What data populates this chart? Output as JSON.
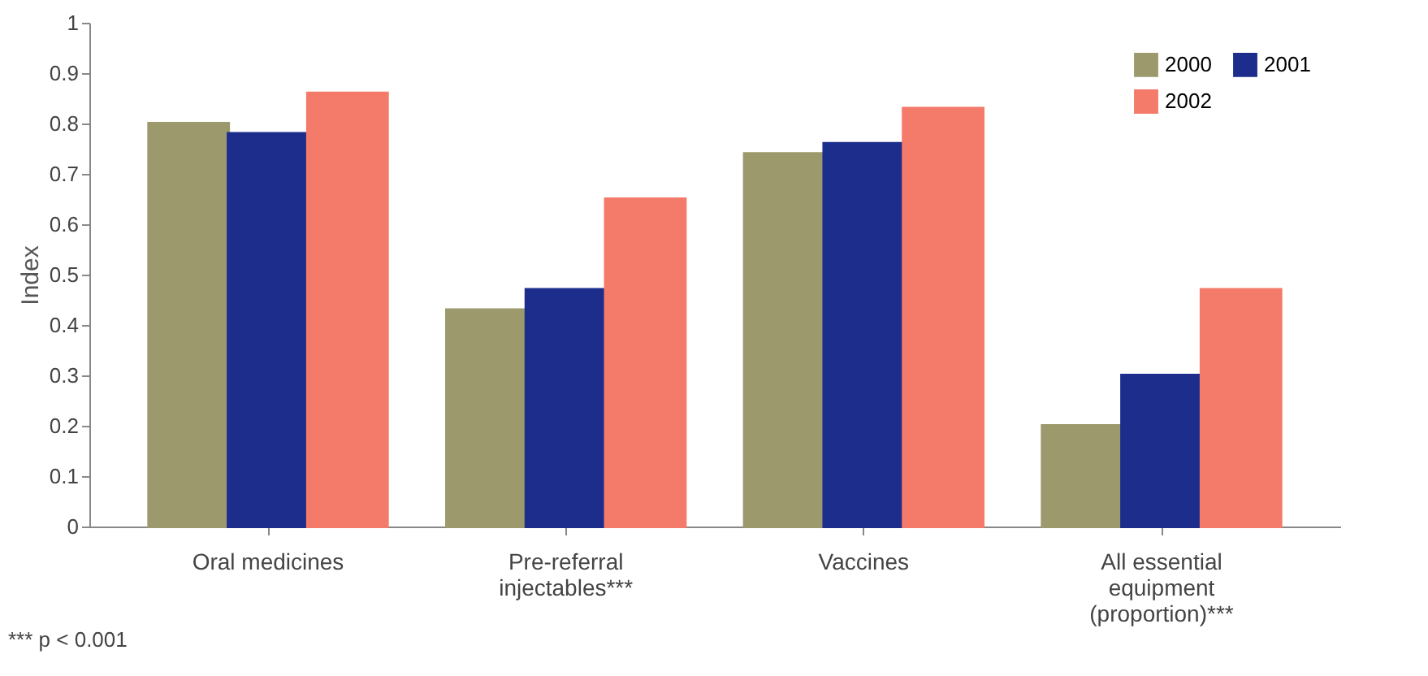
{
  "chart_data": {
    "type": "bar",
    "ylabel": "Index",
    "categories": [
      "Oral medicines",
      "Pre-referral\ninjectables***",
      "Vaccines",
      "All essential\nequipment\n(proportion)***"
    ],
    "series": [
      {
        "name": "2000",
        "color": "#9c9a6c",
        "values": [
          0.8,
          0.43,
          0.74,
          0.2
        ]
      },
      {
        "name": "2001",
        "color": "#1c2d8c",
        "values": [
          0.78,
          0.47,
          0.76,
          0.3
        ]
      },
      {
        "name": "2002",
        "color": "#f47a6a",
        "values": [
          0.86,
          0.65,
          0.83,
          0.47
        ]
      }
    ],
    "ylim": [
      0,
      1
    ],
    "yticks": [
      0,
      0.1,
      0.2,
      0.3,
      0.4,
      0.5,
      0.6,
      0.7,
      0.8,
      0.9,
      1
    ],
    "grid": false,
    "legend": "top right",
    "annotations": [
      "*** p < 0.001"
    ]
  }
}
